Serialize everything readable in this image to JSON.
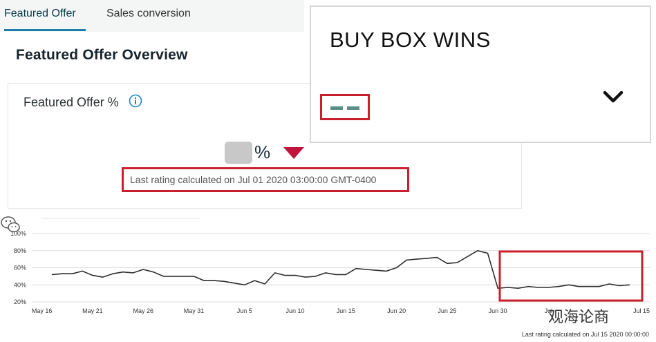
{
  "tabs": [
    {
      "label": "Featured Offer",
      "active": true
    },
    {
      "label": "Sales conversion",
      "active": false
    }
  ],
  "overview_title": "Featured Offer Overview",
  "featured_card": {
    "label": "Featured Offer %",
    "info_icon": "info-icon",
    "percent_sign": "%",
    "trend_icon": "down-triangle-icon",
    "trend_color": "#c0143c",
    "rating_text": "Last rating calculated on Jul 01 2020 03:00:00 GMT-0400"
  },
  "buybox": {
    "title": "BUY BOX WINS",
    "value_icon": "dash-placeholder",
    "dash_color": "#5b8f86",
    "expand_icon": "chevron-down-icon"
  },
  "highlight_color": "#cc1f2d",
  "chart_data": {
    "type": "line",
    "title": "",
    "xlabel": "",
    "ylabel": "",
    "ylim": [
      20,
      100
    ],
    "yticks": [
      "100%",
      "80%",
      "60%",
      "40%",
      "20%"
    ],
    "xticks": [
      "May 16",
      "May 21",
      "May 26",
      "May 31",
      "Jun 5",
      "Jun 10",
      "Jun 15",
      "Jun 20",
      "Jun 25",
      "Jun 30",
      "Jul",
      "Jul 15"
    ],
    "grid": true,
    "series": [
      {
        "values": [
          [
            2,
            52
          ],
          [
            3,
            53
          ],
          [
            4,
            53
          ],
          [
            5,
            56
          ],
          [
            6,
            51
          ],
          [
            7,
            49
          ],
          [
            8,
            53
          ],
          [
            9,
            55
          ],
          [
            10,
            54
          ],
          [
            11,
            58
          ],
          [
            12,
            55
          ],
          [
            13,
            50
          ],
          [
            14,
            50
          ],
          [
            15,
            50
          ],
          [
            16,
            50
          ],
          [
            17,
            45
          ],
          [
            18,
            45
          ],
          [
            19,
            44
          ],
          [
            20,
            42
          ],
          [
            21,
            40
          ],
          [
            22,
            45
          ],
          [
            23,
            41
          ],
          [
            24,
            54
          ],
          [
            25,
            51
          ],
          [
            26,
            51
          ],
          [
            27,
            49
          ],
          [
            28,
            50
          ],
          [
            29,
            54
          ],
          [
            30,
            52
          ],
          [
            31,
            52
          ],
          [
            32,
            59
          ],
          [
            33,
            58
          ],
          [
            34,
            57
          ],
          [
            35,
            56
          ],
          [
            36,
            60
          ],
          [
            37,
            69
          ],
          [
            38,
            70
          ],
          [
            39,
            71
          ],
          [
            40,
            72
          ],
          [
            41,
            65
          ],
          [
            42,
            66
          ],
          [
            43,
            73
          ],
          [
            44,
            80
          ],
          [
            45,
            77
          ],
          [
            46,
            36
          ],
          [
            47,
            37
          ],
          [
            48,
            36
          ],
          [
            49,
            38
          ],
          [
            50,
            37
          ],
          [
            51,
            37
          ],
          [
            52,
            38
          ],
          [
            53,
            40
          ],
          [
            54,
            38
          ],
          [
            55,
            38
          ],
          [
            56,
            38
          ],
          [
            57,
            41
          ],
          [
            58,
            39
          ],
          [
            59,
            40
          ]
        ]
      }
    ],
    "footnote": "Last rating calculated on Jul 15 2020 00:00:00"
  },
  "watermark": {
    "text": "观海论商",
    "icon": "wechat-icon"
  }
}
